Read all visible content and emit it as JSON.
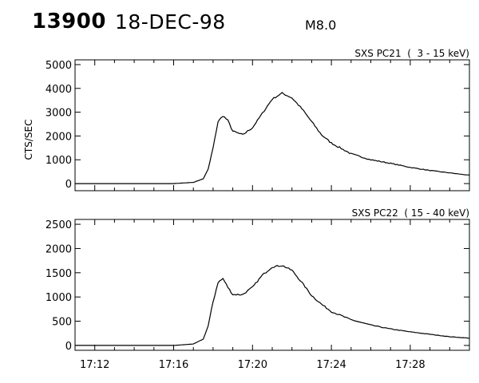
{
  "header": {
    "event_id": "13900",
    "date": "18-DEC-98",
    "flare_class": "M8.0"
  },
  "chart_data": [
    {
      "type": "line",
      "title": "SXS PC21  (  3 - 15 keV)",
      "ylabel": "CTS/SEC",
      "xlabel": "",
      "ylim": [
        -300,
        5200
      ],
      "yticks": [
        0,
        1000,
        2000,
        3000,
        4000,
        5000
      ],
      "xlim": [
        "17:11",
        "17:31"
      ],
      "grid": false,
      "series": [
        {
          "x": [
            "17:11",
            "17:15",
            "17:16",
            "17:17",
            "17:17:30",
            "17:17:45",
            "17:18",
            "17:18:15",
            "17:18:30",
            "17:18:45",
            "17:19",
            "17:19:30",
            "17:20",
            "17:20:30",
            "17:21",
            "17:21:30",
            "17:22",
            "17:22:30",
            "17:23",
            "17:23:30",
            "17:24",
            "17:25",
            "17:26",
            "17:27",
            "17:28",
            "17:29",
            "17:30",
            "17:31"
          ],
          "y": [
            0,
            0,
            0,
            50,
            200,
            600,
            1500,
            2600,
            2850,
            2650,
            2200,
            2050,
            2350,
            2950,
            3550,
            3800,
            3600,
            3150,
            2600,
            2050,
            1700,
            1250,
            1000,
            850,
            680,
            550,
            450,
            350
          ]
        }
      ]
    },
    {
      "type": "line",
      "title": "SXS PC22  ( 15 - 40 keV)",
      "ylabel": "",
      "xlabel": "",
      "ylim": [
        -100,
        2600
      ],
      "yticks": [
        0,
        500,
        1000,
        1500,
        2000,
        2500
      ],
      "xlim": [
        "17:11",
        "17:31"
      ],
      "xticks": [
        "17:12",
        "17:16",
        "17:20",
        "17:24",
        "17:28"
      ],
      "grid": false,
      "series": [
        {
          "x": [
            "17:11",
            "17:15",
            "17:16",
            "17:17",
            "17:17:30",
            "17:17:45",
            "17:18",
            "17:18:15",
            "17:18:30",
            "17:18:45",
            "17:19",
            "17:19:30",
            "17:20",
            "17:20:30",
            "17:21",
            "17:21:30",
            "17:22",
            "17:22:30",
            "17:23",
            "17:23:30",
            "17:24",
            "17:25",
            "17:26",
            "17:27",
            "17:28",
            "17:29",
            "17:30",
            "17:31"
          ],
          "y": [
            0,
            0,
            0,
            30,
            130,
            400,
            900,
            1300,
            1380,
            1200,
            1050,
            1050,
            1200,
            1450,
            1620,
            1650,
            1550,
            1300,
            1030,
            850,
            700,
            530,
            420,
            340,
            280,
            230,
            180,
            150
          ]
        }
      ]
    }
  ]
}
